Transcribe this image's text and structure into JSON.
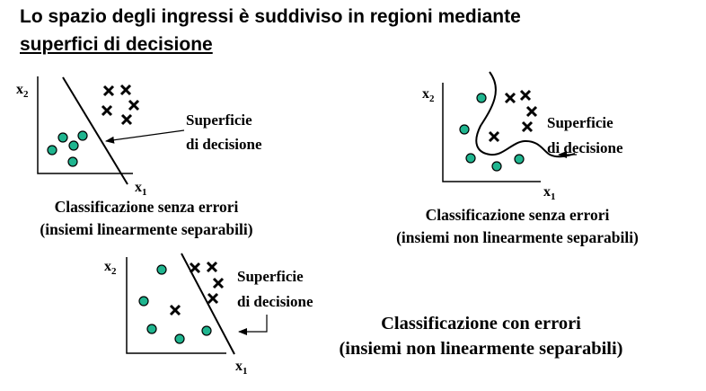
{
  "title": {
    "line1": "Lo spazio degli ingressi è suddiviso in regioni mediante",
    "line2": "superfici di decisione"
  },
  "axis_labels": {
    "x1": "x",
    "x1_sub": "1",
    "x2": "x",
    "x2_sub": "2"
  },
  "surface_label": {
    "line1": "Superficie",
    "line2": "di decisione"
  },
  "captions": {
    "top_left": {
      "line1": "Classificazione senza errori",
      "line2": "(insiemi linearmente separabili)"
    },
    "top_right": {
      "line1": "Classificazione senza errori",
      "line2": "(insiemi non linearmente separabili)"
    },
    "bottom": {
      "line1": "Classificazione con errori",
      "line2": "(insiemi non linearmente separabili)"
    }
  },
  "colors": {
    "circle_fill": "#1fb58f",
    "stroke": "#000000",
    "background": "#ffffff"
  }
}
